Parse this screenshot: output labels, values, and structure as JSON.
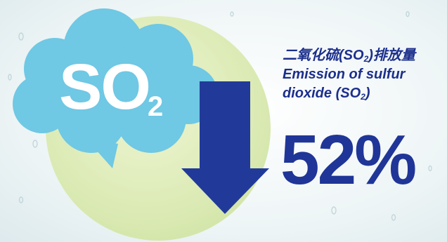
{
  "pollutant": {
    "formula_main": "SO",
    "formula_subscript": "2"
  },
  "caption": {
    "chinese_prefix": "二氧化硫(SO",
    "chinese_subscript": "2",
    "chinese_suffix": ")排放量",
    "english_line1": "Emission of sulfur",
    "english_line2_prefix": "dioxide (SO",
    "english_line2_subscript": "2",
    "english_line2_suffix": ")"
  },
  "reduction": {
    "value": "52%",
    "direction": "down"
  },
  "colors": {
    "cloud": "#6fc8e4",
    "arrow": "#213a9a",
    "text_blue": "#1c2f8c",
    "circle": "#dbe9b5",
    "background": "#f2f7f8"
  },
  "icons": {
    "cloud": "speech-cloud-icon",
    "arrow": "down-arrow-icon"
  }
}
